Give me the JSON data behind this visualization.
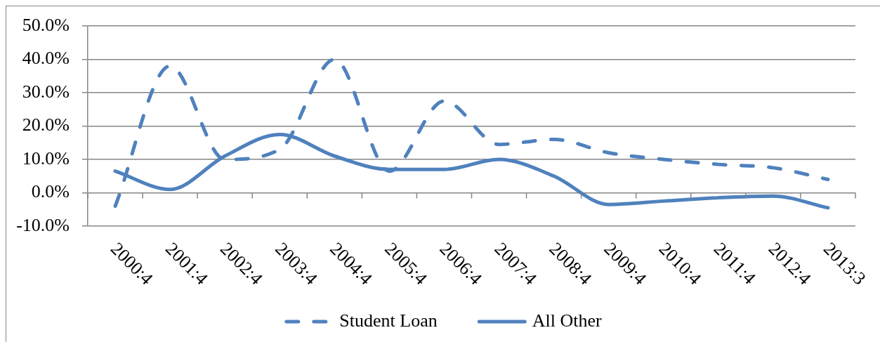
{
  "chart_data": {
    "type": "line",
    "categories": [
      "2000:4",
      "2001:4",
      "2002:4",
      "2003:4",
      "2004:4",
      "2005:4",
      "2006:4",
      "2007:4",
      "2008:4",
      "2009:4",
      "2010:4",
      "2011:4",
      "2012:4",
      "2013:3"
    ],
    "series": [
      {
        "name": "Student Loan",
        "color": "#4f81bd",
        "line_style": "dashed",
        "values": [
          -4,
          38,
          10,
          13,
          40,
          6.5,
          27.5,
          14.5,
          16,
          12,
          10,
          8.5,
          7.5,
          4
        ]
      },
      {
        "name": "All Other",
        "color": "#4f81bd",
        "line_style": "solid",
        "values": [
          6.5,
          1,
          11,
          17.5,
          11,
          7,
          7,
          10,
          5,
          -3.5,
          -2.5,
          -1.5,
          -1,
          -4.5
        ]
      }
    ],
    "ylim": [
      -10,
      50
    ],
    "yticks": [
      {
        "value": -10,
        "label": "-10.0%"
      },
      {
        "value": 0,
        "label": "0.0%"
      },
      {
        "value": 10,
        "label": "10.0%"
      },
      {
        "value": 20,
        "label": "20.0%"
      },
      {
        "value": 30,
        "label": "30.0%"
      },
      {
        "value": 40,
        "label": "40.0%"
      },
      {
        "value": 50,
        "label": "50.0%"
      }
    ],
    "grid": "y",
    "legend": "bottom"
  }
}
